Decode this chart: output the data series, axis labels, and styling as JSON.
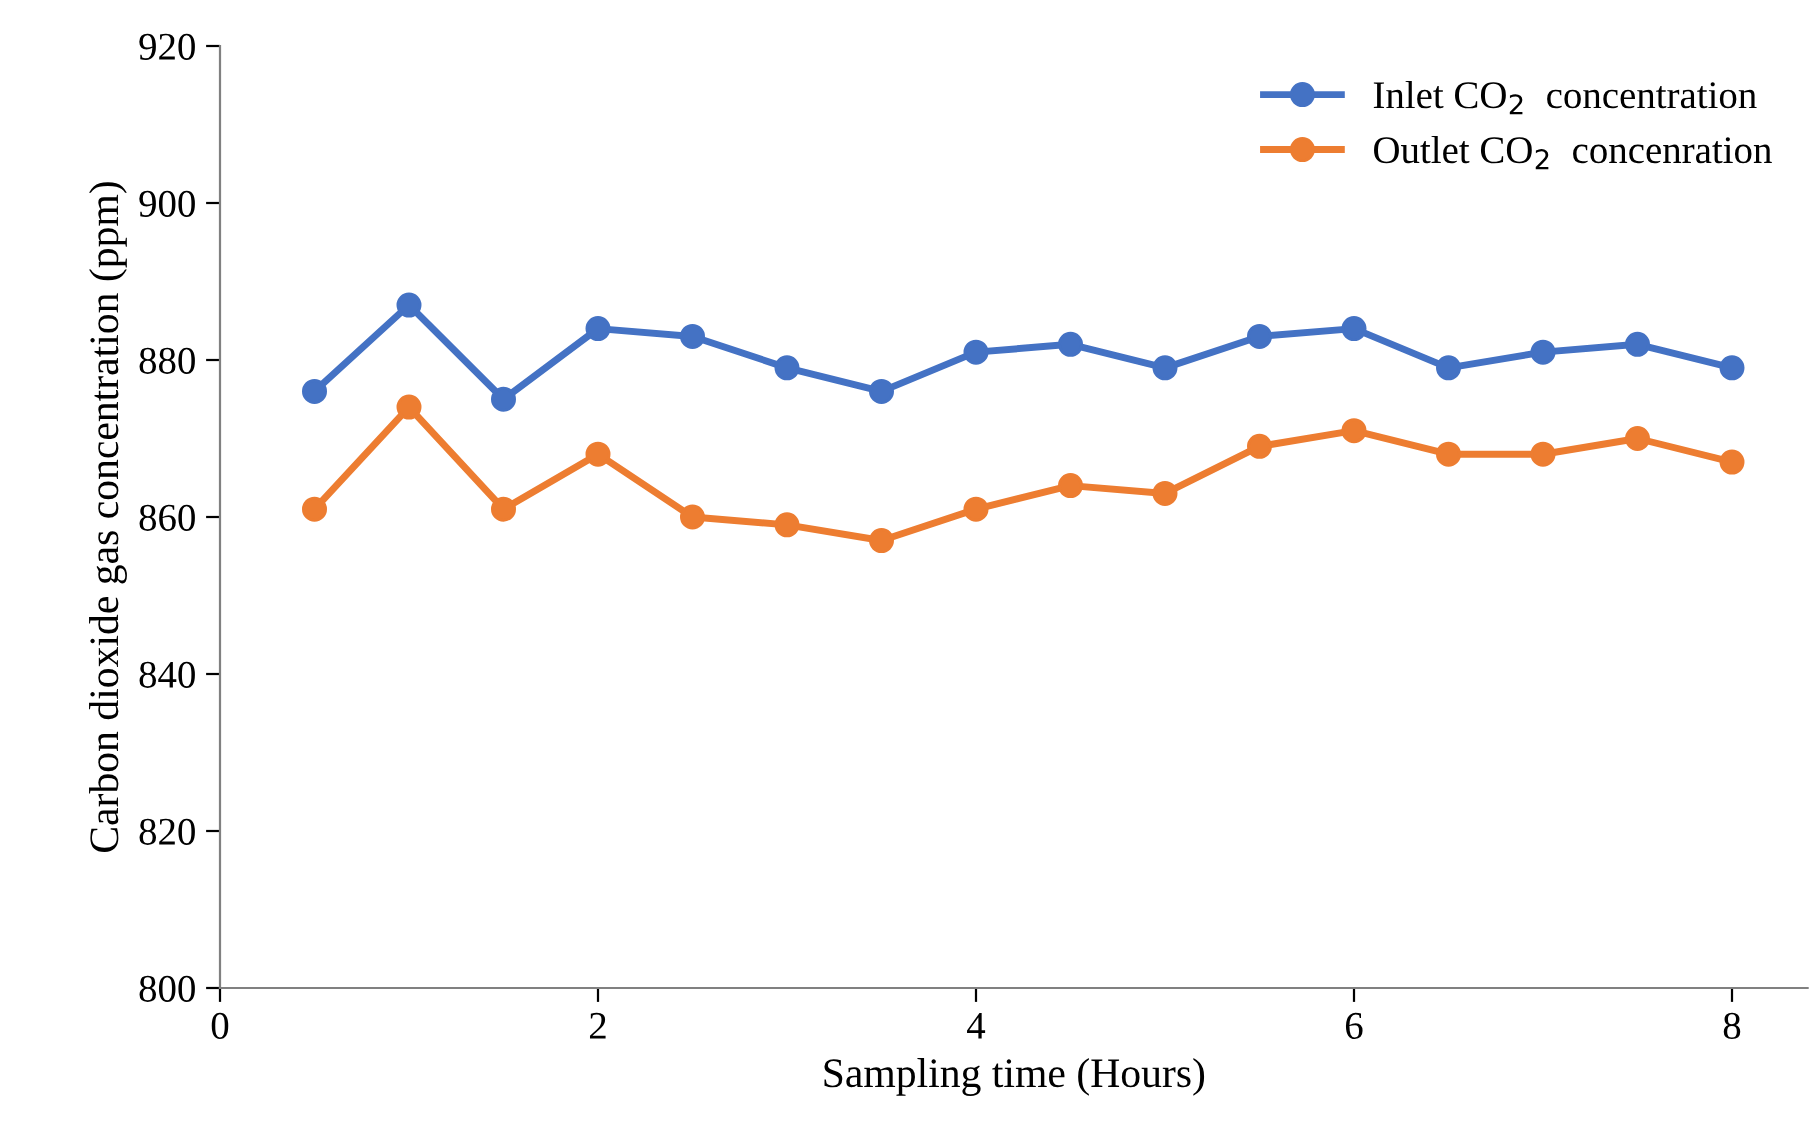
{
  "chart_data": {
    "type": "line",
    "xlabel": "Sampling time (Hours)",
    "ylabel": "Carbon dioxide gas concentration (ppm)",
    "x": [
      0.5,
      1,
      1.5,
      2,
      2.5,
      3,
      3.5,
      4,
      4.5,
      5,
      5.5,
      6,
      6.5,
      7,
      7.5,
      8
    ],
    "series": [
      {
        "name": "Inlet CO$_{2}$  concentration",
        "color": "#4472c4",
        "values": [
          876,
          887,
          875,
          884,
          883,
          879,
          876,
          881,
          882,
          879,
          883,
          884,
          879,
          881,
          882,
          879
        ]
      },
      {
        "name": "Outlet CO$_{2}$  concenration",
        "color": "#ed7d31",
        "values": [
          861,
          874,
          861,
          868,
          860,
          859,
          857,
          861,
          864,
          863,
          869,
          871,
          868,
          868,
          870,
          867
        ]
      }
    ],
    "xlim": [
      0,
      8.4
    ],
    "xticks": [
      0,
      2,
      4,
      6,
      8
    ],
    "ylim": [
      800,
      920
    ],
    "yticks": [
      800,
      820,
      840,
      860,
      880,
      900,
      920
    ],
    "grid": false,
    "legend": "top right",
    "marker": "circle",
    "line_style": "solid"
  }
}
